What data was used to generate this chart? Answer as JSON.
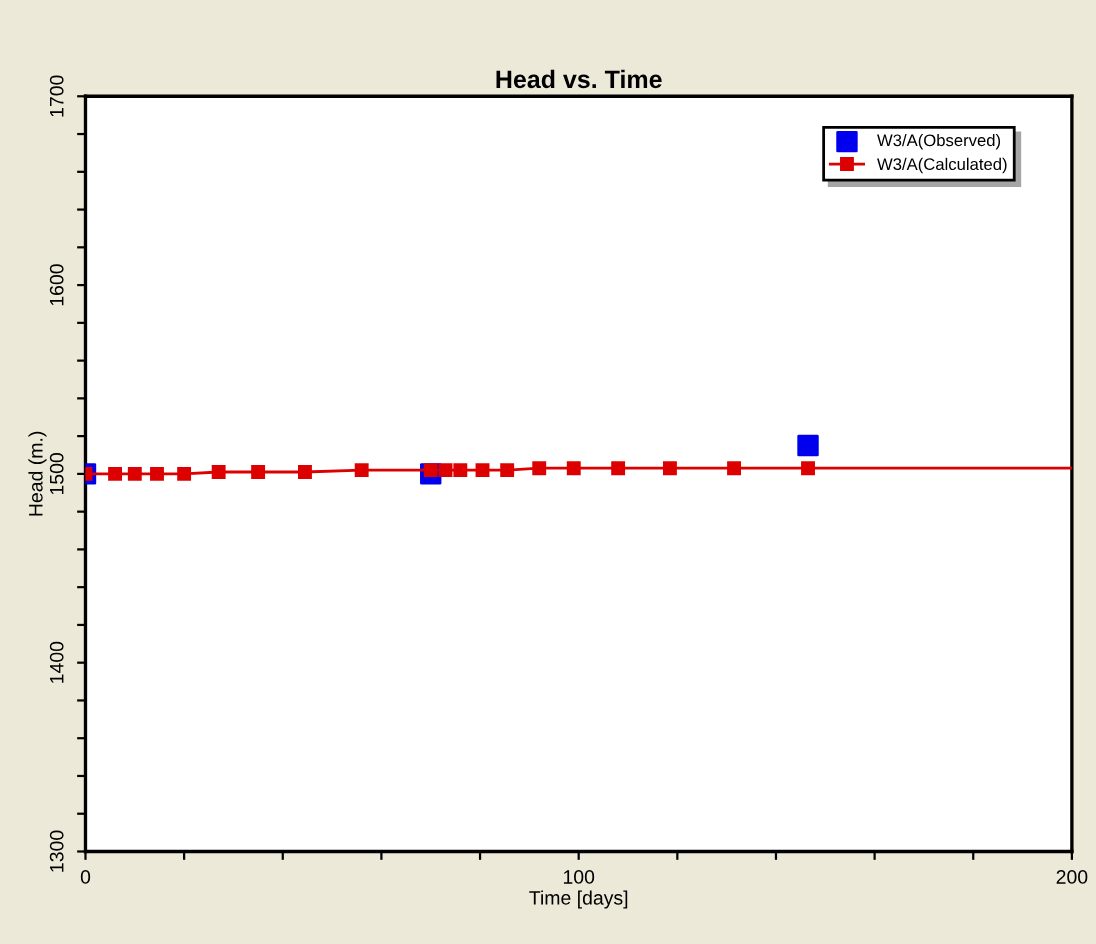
{
  "chart_data": {
    "type": "line",
    "title": "Head vs. Time",
    "xlabel": "Time [days]",
    "ylabel": "Head (m.)",
    "xlim": [
      0,
      200
    ],
    "ylim": [
      1300,
      1700
    ],
    "xticks": [
      0,
      {
        "value": 20,
        "label": null
      },
      {
        "value": 40,
        "label": null
      },
      {
        "value": 60,
        "label": null
      },
      {
        "value": 80,
        "label": null
      },
      100,
      {
        "value": 120,
        "label": null
      },
      {
        "value": 140,
        "label": null
      },
      {
        "value": 160,
        "label": null
      },
      {
        "value": 180,
        "label": null
      },
      200
    ],
    "yticks": [
      1300,
      {
        "value": 1320,
        "label": null
      },
      {
        "value": 1340,
        "label": null
      },
      {
        "value": 1360,
        "label": null
      },
      {
        "value": 1380,
        "label": null
      },
      1400,
      {
        "value": 1420,
        "label": null
      },
      {
        "value": 1440,
        "label": null
      },
      {
        "value": 1460,
        "label": null
      },
      {
        "value": 1480,
        "label": null
      },
      1500,
      {
        "value": 1520,
        "label": null
      },
      {
        "value": 1540,
        "label": null
      },
      {
        "value": 1560,
        "label": null
      },
      {
        "value": 1580,
        "label": null
      },
      1600,
      {
        "value": 1620,
        "label": null
      },
      {
        "value": 1640,
        "label": null
      },
      {
        "value": 1660,
        "label": null
      },
      {
        "value": 1680,
        "label": null
      },
      1700
    ],
    "grid": false,
    "legend": "top right",
    "series": [
      {
        "name": "W3/A(Observed)",
        "type": "scatter",
        "marker": "square",
        "color": "#0000ee",
        "x": [
          0,
          70,
          146.5
        ],
        "values": [
          1500,
          1500,
          1515
        ]
      },
      {
        "name": "W3/A(Calculated)",
        "marker": "square",
        "color": "#dd0000",
        "x": [
          0,
          6,
          10,
          14.5,
          20,
          27,
          35,
          44.5,
          56,
          70,
          73,
          76,
          80.5,
          85.5,
          92,
          99,
          108,
          118.5,
          131.5,
          146.5
        ],
        "values": [
          1500,
          1500,
          1500,
          1500,
          1500,
          1501,
          1501,
          1501,
          1502,
          1502,
          1502,
          1502,
          1502,
          1502,
          1503,
          1503,
          1503,
          1503,
          1503,
          1503
        ]
      },
      {
        "marker": "none",
        "color": "#dd0000",
        "x": [
          146.5,
          200
        ],
        "values": [
          1503,
          1503
        ]
      }
    ]
  }
}
